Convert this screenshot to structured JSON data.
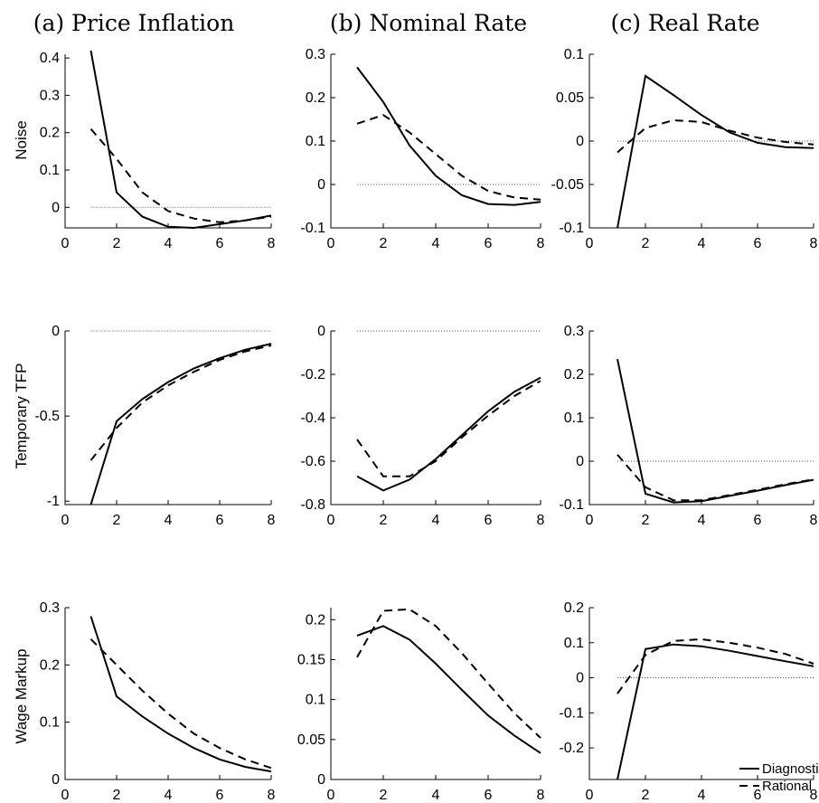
{
  "col_titles": [
    "(a) Price Inflation",
    "(b) Nominal Rate",
    "(c) Real Rate"
  ],
  "row_labels": [
    "Noise",
    "Temporary TFP",
    "Wage Markup"
  ],
  "legend": {
    "placement": "bottom-right of panel (3,3)",
    "entries": [
      "Diagnostic",
      "Rational"
    ]
  },
  "chart_data": [
    {
      "type": "line",
      "row": 0,
      "col": 0,
      "x": [
        1,
        2,
        3,
        4,
        5,
        6,
        7,
        8
      ],
      "xlim": [
        0,
        8
      ],
      "xticks": [
        0,
        2,
        4,
        6,
        8
      ],
      "ylim": [
        -0.055,
        0.41
      ],
      "yticks": [
        0,
        0.1,
        0.2,
        0.3,
        0.4
      ],
      "ytick_labels": [
        "0",
        "0.1",
        "0.2",
        "0.3",
        "0.4"
      ],
      "series": [
        {
          "name": "Diagnostic",
          "values": [
            0.42,
            0.04,
            -0.025,
            -0.052,
            -0.055,
            -0.045,
            -0.035,
            -0.022
          ]
        },
        {
          "name": "Rational",
          "values": [
            0.21,
            0.13,
            0.04,
            -0.01,
            -0.03,
            -0.04,
            -0.035,
            -0.025
          ]
        }
      ]
    },
    {
      "type": "line",
      "row": 0,
      "col": 1,
      "x": [
        1,
        2,
        3,
        4,
        5,
        6,
        7,
        8
      ],
      "xlim": [
        0,
        8
      ],
      "xticks": [
        0,
        2,
        4,
        6,
        8
      ],
      "ylim": [
        -0.1,
        0.3
      ],
      "yticks": [
        -0.1,
        0,
        0.1,
        0.2,
        0.3
      ],
      "ytick_labels": [
        "-0.1",
        "0",
        "0.1",
        "0.2",
        "0.3"
      ],
      "series": [
        {
          "name": "Diagnostic",
          "values": [
            0.27,
            0.19,
            0.09,
            0.02,
            -0.025,
            -0.045,
            -0.047,
            -0.04
          ]
        },
        {
          "name": "Rational",
          "values": [
            0.14,
            0.16,
            0.12,
            0.07,
            0.02,
            -0.015,
            -0.03,
            -0.035
          ]
        }
      ]
    },
    {
      "type": "line",
      "row": 0,
      "col": 2,
      "x": [
        1,
        2,
        3,
        4,
        5,
        6,
        7,
        8
      ],
      "xlim": [
        0,
        8
      ],
      "xticks": [
        0,
        2,
        4,
        6,
        8
      ],
      "ylim": [
        -0.1,
        0.1
      ],
      "yticks": [
        -0.1,
        -0.05,
        0,
        0.05,
        0.1
      ],
      "ytick_labels": [
        "-0.1",
        "-0.05",
        "0",
        "0.05",
        "0.1"
      ],
      "series": [
        {
          "name": "Diagnostic",
          "values": [
            -0.1,
            0.075,
            0.053,
            0.03,
            0.01,
            -0.002,
            -0.007,
            -0.008
          ]
        },
        {
          "name": "Rational",
          "values": [
            -0.013,
            0.015,
            0.024,
            0.022,
            0.012,
            0.004,
            -0.001,
            -0.004
          ]
        }
      ]
    },
    {
      "type": "line",
      "row": 1,
      "col": 0,
      "x": [
        1,
        2,
        3,
        4,
        5,
        6,
        7,
        8
      ],
      "xlim": [
        0,
        8
      ],
      "xticks": [
        0,
        2,
        4,
        6,
        8
      ],
      "ylim": [
        -1.02,
        0
      ],
      "yticks": [
        -1,
        -0.5,
        0
      ],
      "ytick_labels": [
        "-1",
        "-0.5",
        "0"
      ],
      "series": [
        {
          "name": "Diagnostic",
          "values": [
            -1.02,
            -0.53,
            -0.4,
            -0.3,
            -0.22,
            -0.16,
            -0.11,
            -0.075
          ]
        },
        {
          "name": "Rational",
          "values": [
            -0.76,
            -0.57,
            -0.42,
            -0.32,
            -0.24,
            -0.17,
            -0.12,
            -0.085
          ]
        }
      ]
    },
    {
      "type": "line",
      "row": 1,
      "col": 1,
      "x": [
        1,
        2,
        3,
        4,
        5,
        6,
        7,
        8
      ],
      "xlim": [
        0,
        8
      ],
      "xticks": [
        0,
        2,
        4,
        6,
        8
      ],
      "ylim": [
        -0.8,
        0
      ],
      "yticks": [
        -0.8,
        -0.6,
        -0.4,
        -0.2,
        0
      ],
      "ytick_labels": [
        "-0.8",
        "-0.6",
        "-0.4",
        "-0.2",
        "0"
      ],
      "series": [
        {
          "name": "Diagnostic",
          "values": [
            -0.67,
            -0.735,
            -0.685,
            -0.59,
            -0.48,
            -0.37,
            -0.28,
            -0.215
          ]
        },
        {
          "name": "Rational",
          "values": [
            -0.5,
            -0.67,
            -0.67,
            -0.6,
            -0.49,
            -0.39,
            -0.3,
            -0.23
          ]
        }
      ]
    },
    {
      "type": "line",
      "row": 1,
      "col": 2,
      "x": [
        1,
        2,
        3,
        4,
        5,
        6,
        7,
        8
      ],
      "xlim": [
        0,
        8
      ],
      "xticks": [
        0,
        2,
        4,
        6,
        8
      ],
      "ylim": [
        -0.1,
        0.3
      ],
      "yticks": [
        -0.1,
        0,
        0.1,
        0.2,
        0.3
      ],
      "ytick_labels": [
        "-0.1",
        "0",
        "0.1",
        "0.2",
        "0.3"
      ],
      "series": [
        {
          "name": "Diagnostic",
          "values": [
            0.235,
            -0.075,
            -0.095,
            -0.092,
            -0.08,
            -0.068,
            -0.055,
            -0.043
          ]
        },
        {
          "name": "Rational",
          "values": [
            0.015,
            -0.06,
            -0.09,
            -0.09,
            -0.078,
            -0.066,
            -0.053,
            -0.042
          ]
        }
      ]
    },
    {
      "type": "line",
      "row": 2,
      "col": 0,
      "x": [
        1,
        2,
        3,
        4,
        5,
        6,
        7,
        8
      ],
      "xlim": [
        0,
        8
      ],
      "xticks": [
        0,
        2,
        4,
        6,
        8
      ],
      "ylim": [
        0,
        0.3
      ],
      "yticks": [
        0,
        0.1,
        0.2,
        0.3
      ],
      "ytick_labels": [
        "0",
        "0.1",
        "0.2",
        "0.3"
      ],
      "series": [
        {
          "name": "Diagnostic",
          "values": [
            0.285,
            0.145,
            0.11,
            0.08,
            0.055,
            0.035,
            0.022,
            0.014
          ]
        },
        {
          "name": "Rational",
          "values": [
            0.245,
            0.2,
            0.155,
            0.115,
            0.08,
            0.055,
            0.035,
            0.02
          ]
        }
      ]
    },
    {
      "type": "line",
      "row": 2,
      "col": 1,
      "x": [
        1,
        2,
        3,
        4,
        5,
        6,
        7,
        8
      ],
      "xlim": [
        0,
        8
      ],
      "xticks": [
        0,
        2,
        4,
        6,
        8
      ],
      "ylim": [
        0,
        0.215
      ],
      "yticks": [
        0,
        0.05,
        0.1,
        0.15,
        0.2
      ],
      "ytick_labels": [
        "0",
        "0.05",
        "0.1",
        "0.15",
        "0.2"
      ],
      "series": [
        {
          "name": "Diagnostic",
          "values": [
            0.18,
            0.192,
            0.175,
            0.145,
            0.112,
            0.08,
            0.055,
            0.033
          ]
        },
        {
          "name": "Rational",
          "values": [
            0.153,
            0.211,
            0.213,
            0.192,
            0.158,
            0.12,
            0.083,
            0.052
          ]
        }
      ]
    },
    {
      "type": "line",
      "row": 2,
      "col": 2,
      "x": [
        1,
        2,
        3,
        4,
        5,
        6,
        7,
        8
      ],
      "xlim": [
        0,
        8
      ],
      "xticks": [
        0,
        2,
        4,
        6,
        8
      ],
      "ylim": [
        -0.29,
        0.2
      ],
      "yticks": [
        -0.2,
        -0.1,
        0,
        0.1,
        0.2
      ],
      "ytick_labels": [
        "-0.2",
        "-0.1",
        "0",
        "0.1",
        "0.2"
      ],
      "series": [
        {
          "name": "Diagnostic",
          "values": [
            -0.29,
            0.082,
            0.095,
            0.09,
            0.077,
            0.062,
            0.047,
            0.033
          ]
        },
        {
          "name": "Rational",
          "values": [
            -0.045,
            0.065,
            0.105,
            0.11,
            0.1,
            0.086,
            0.068,
            0.04
          ]
        }
      ]
    }
  ]
}
